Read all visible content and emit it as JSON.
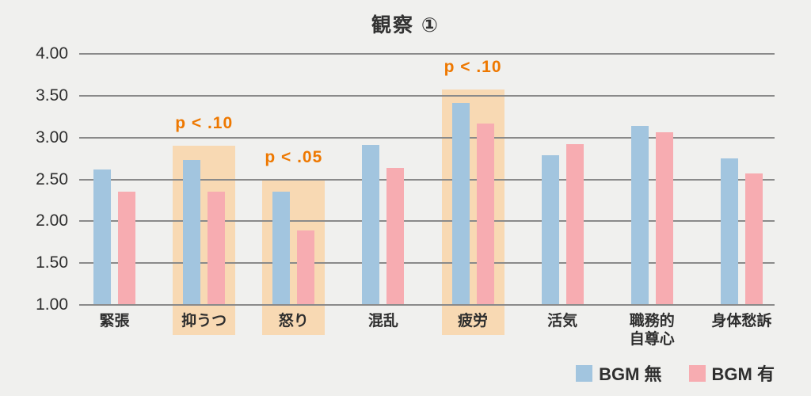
{
  "title": "観察 ①",
  "chart_data": {
    "type": "bar",
    "title": "観察 ①",
    "categories": [
      "緊張",
      "抑うつ",
      "怒り",
      "混乱",
      "疲労",
      "活気",
      "職務的\n自尊心",
      "身体愁訴"
    ],
    "series": [
      {
        "name": "BGM 無",
        "color": "#a2c5df",
        "values": [
          2.62,
          2.73,
          2.35,
          2.91,
          3.41,
          2.79,
          3.14,
          2.75
        ]
      },
      {
        "name": "BGM 有",
        "color": "#f7acb1",
        "values": [
          2.35,
          2.35,
          1.89,
          2.64,
          3.17,
          2.92,
          3.06,
          2.57
        ]
      }
    ],
    "ylim": [
      1.0,
      4.0
    ],
    "yticks": [
      {
        "value": 4.0,
        "label": "4.00"
      },
      {
        "value": 3.5,
        "label": "3.50"
      },
      {
        "value": 3.0,
        "label": "3.00"
      },
      {
        "value": 2.5,
        "label": "2.50"
      },
      {
        "value": 2.0,
        "label": "2.00"
      },
      {
        "value": 1.5,
        "label": "1.50"
      },
      {
        "value": 1.0,
        "label": "1.00"
      }
    ],
    "grid": true,
    "legend_position": "bottom-right",
    "highlights": [
      {
        "category_index": 1,
        "label": "p < .10",
        "top_value": 2.9
      },
      {
        "category_index": 2,
        "label": "p < .05",
        "top_value": 2.5
      },
      {
        "category_index": 4,
        "label": "p < .10",
        "top_value": 3.57
      }
    ]
  },
  "colors": {
    "background": "#f0f0ee",
    "gridline": "#8a8a8a",
    "highlight": "#f8d9b3",
    "annotation": "#ee7800",
    "text": "#2e2e2e",
    "bgm_off_bar": "#a2c5df",
    "bgm_on_bar": "#f7acb1"
  }
}
